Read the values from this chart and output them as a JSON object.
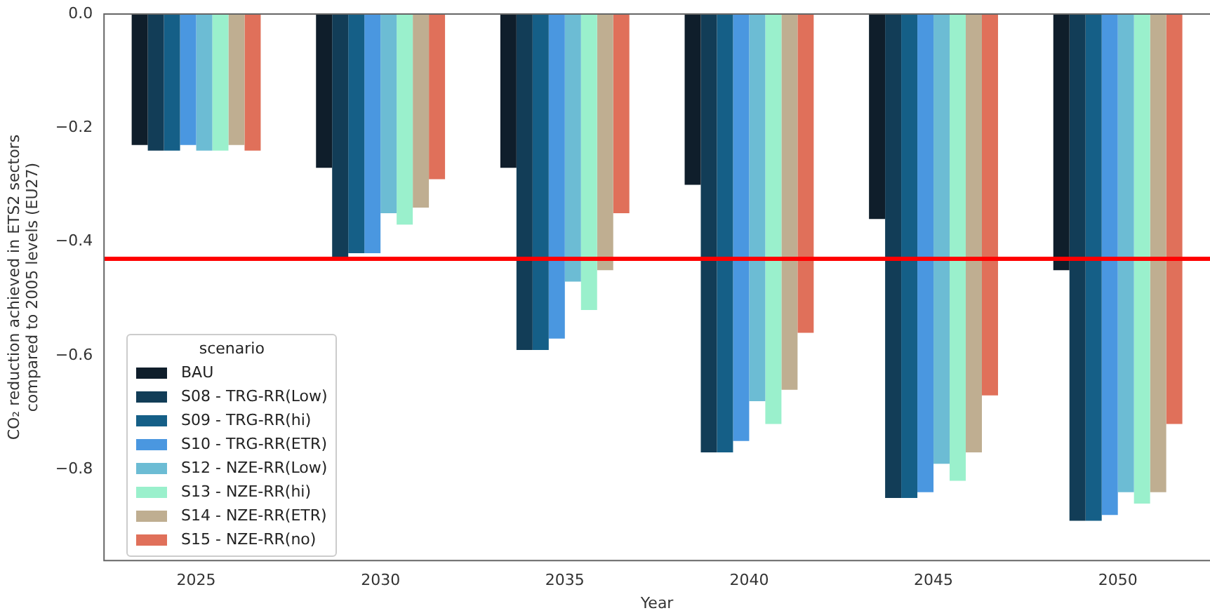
{
  "chart_data": {
    "type": "bar",
    "xlabel": "Year",
    "ylabel": "CO₂ reduction achieved in ETS2 sectors\ncompared to 2005 levels (EU27)",
    "legend_title": "scenario",
    "legend": "bottom left",
    "grid": false,
    "categories": [
      "2025",
      "2030",
      "2035",
      "2040",
      "2045",
      "2050"
    ],
    "ylim": [
      -0.96,
      0
    ],
    "yticks": [
      {
        "value": 0,
        "label": "0.0"
      },
      {
        "value": -0.2,
        "label": "−0.2"
      },
      {
        "value": -0.4,
        "label": "−0.4"
      },
      {
        "value": -0.6,
        "label": "−0.6"
      },
      {
        "value": -0.8,
        "label": "−0.8"
      }
    ],
    "ref_lines": [
      {
        "axis": "y",
        "value": -0.43,
        "color": "#ff0000"
      }
    ],
    "series": [
      {
        "name": "BAU",
        "color": "#0f1e2b",
        "values": [
          -0.23,
          -0.27,
          -0.27,
          -0.3,
          -0.36,
          -0.45
        ]
      },
      {
        "name": "S08 - TRG-RR(Low)",
        "color": "#123d57",
        "values": [
          -0.24,
          -0.43,
          -0.59,
          -0.77,
          -0.85,
          -0.89
        ]
      },
      {
        "name": "S09 - TRG-RR(hi)",
        "color": "#155f87",
        "values": [
          -0.24,
          -0.42,
          -0.59,
          -0.77,
          -0.85,
          -0.89
        ]
      },
      {
        "name": "S10 - TRG-RR(ETR)",
        "color": "#4a97e0",
        "values": [
          -0.23,
          -0.42,
          -0.57,
          -0.75,
          -0.84,
          -0.88
        ]
      },
      {
        "name": "S12 - NZE-RR(Low)",
        "color": "#6cbcd4",
        "values": [
          -0.24,
          -0.35,
          -0.47,
          -0.68,
          -0.79,
          -0.84
        ]
      },
      {
        "name": "S13 - NZE-RR(hi)",
        "color": "#9af0cc",
        "values": [
          -0.24,
          -0.37,
          -0.52,
          -0.72,
          -0.82,
          -0.86
        ]
      },
      {
        "name": "S14 - NZE-RR(ETR)",
        "color": "#bfae91",
        "values": [
          -0.23,
          -0.34,
          -0.45,
          -0.66,
          -0.77,
          -0.84
        ]
      },
      {
        "name": "S15 - NZE-RR(no)",
        "color": "#e0705a",
        "values": [
          -0.24,
          -0.29,
          -0.35,
          -0.56,
          -0.67,
          -0.72
        ]
      }
    ]
  }
}
